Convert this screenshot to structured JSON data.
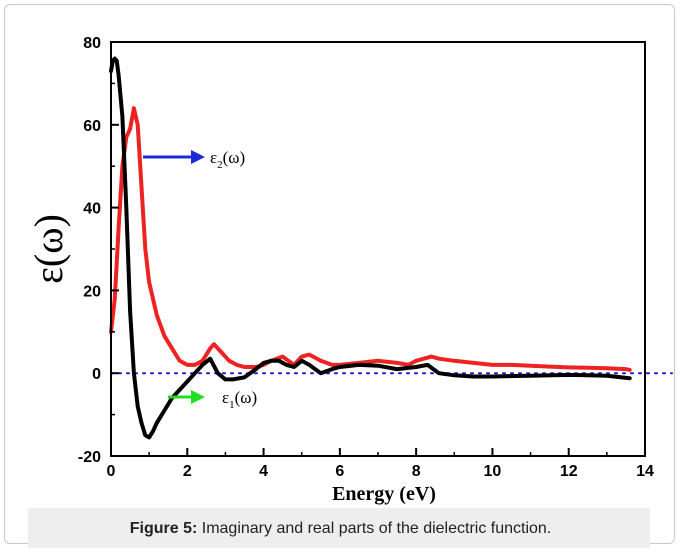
{
  "caption": {
    "label": "Figure 5:",
    "text": " Imaginary and real parts of the dielectric function."
  },
  "colors": {
    "eps1": "#000000",
    "eps2": "#ee2222",
    "zero_line": "#1a1ad0",
    "arrow_eps2": "#1a2ad8",
    "arrow_eps1": "#22dd22"
  },
  "chart_data": {
    "type": "line",
    "title": "",
    "xlabel": "Energy (eV)",
    "ylabel": "ε(ω)",
    "xlim": [
      0,
      14
    ],
    "ylim": [
      -20,
      80
    ],
    "xticks": [
      0,
      2,
      4,
      6,
      8,
      10,
      12,
      14
    ],
    "yticks": [
      -20,
      0,
      20,
      40,
      60,
      80
    ],
    "grid": false,
    "reference_line": {
      "y": 0,
      "style": "dotted"
    },
    "annotations": [
      {
        "series": "eps2",
        "base": "ε",
        "sub": "2",
        "tail": "(ω)"
      },
      {
        "series": "eps1",
        "base": "ε",
        "sub": "1",
        "tail": "(ω)"
      }
    ],
    "series": [
      {
        "key": "eps2",
        "x": [
          0,
          0.1,
          0.2,
          0.3,
          0.4,
          0.5,
          0.6,
          0.7,
          0.8,
          0.9,
          1.0,
          1.2,
          1.4,
          1.6,
          1.8,
          2.0,
          2.2,
          2.4,
          2.6,
          2.7,
          2.9,
          3.1,
          3.3,
          3.5,
          3.8,
          4.0,
          4.2,
          4.5,
          4.8,
          5.0,
          5.2,
          5.5,
          5.8,
          6.0,
          6.5,
          7.0,
          7.5,
          7.8,
          8.0,
          8.2,
          8.4,
          8.6,
          9.0,
          9.5,
          10.0,
          10.5,
          11.0,
          11.5,
          12.0,
          12.5,
          13.0,
          13.5,
          13.6
        ],
        "y": [
          10,
          18,
          35,
          50,
          57,
          59,
          64,
          60,
          45,
          30,
          22,
          14,
          9,
          6,
          3,
          2,
          2,
          3,
          6,
          7,
          5,
          3,
          2,
          1.5,
          1.5,
          2,
          3,
          4,
          2,
          4,
          4.5,
          3,
          2,
          2,
          2.5,
          3,
          2.5,
          2,
          3,
          3.5,
          4,
          3.5,
          3,
          2.5,
          2,
          2,
          1.8,
          1.6,
          1.4,
          1.3,
          1.2,
          1,
          0.8
        ]
      },
      {
        "key": "eps1",
        "x": [
          0,
          0.05,
          0.1,
          0.15,
          0.2,
          0.3,
          0.4,
          0.5,
          0.6,
          0.7,
          0.8,
          0.9,
          1.0,
          1.1,
          1.2,
          1.4,
          1.6,
          1.8,
          2.0,
          2.2,
          2.4,
          2.6,
          2.8,
          3.0,
          3.2,
          3.5,
          3.8,
          4.0,
          4.2,
          4.4,
          4.6,
          4.8,
          5.0,
          5.2,
          5.5,
          5.8,
          6.0,
          6.5,
          7.0,
          7.5,
          8.0,
          8.3,
          8.6,
          9.0,
          9.5,
          10.0,
          11.0,
          12.0,
          12.5,
          13.0,
          13.6
        ],
        "y": [
          73,
          75.5,
          76,
          75.5,
          72,
          62,
          40,
          15,
          0,
          -8,
          -12,
          -15,
          -15.5,
          -14,
          -12,
          -9,
          -6,
          -4,
          -2,
          0,
          2,
          3.5,
          0,
          -1.5,
          -1.5,
          -1,
          1,
          2.5,
          3,
          3,
          2,
          1.5,
          3,
          2,
          0,
          1,
          1.5,
          2,
          1.8,
          1,
          1.5,
          2,
          0,
          -0.5,
          -0.8,
          -0.8,
          -0.6,
          -0.4,
          -0.5,
          -0.6,
          -1.2
        ]
      }
    ]
  }
}
